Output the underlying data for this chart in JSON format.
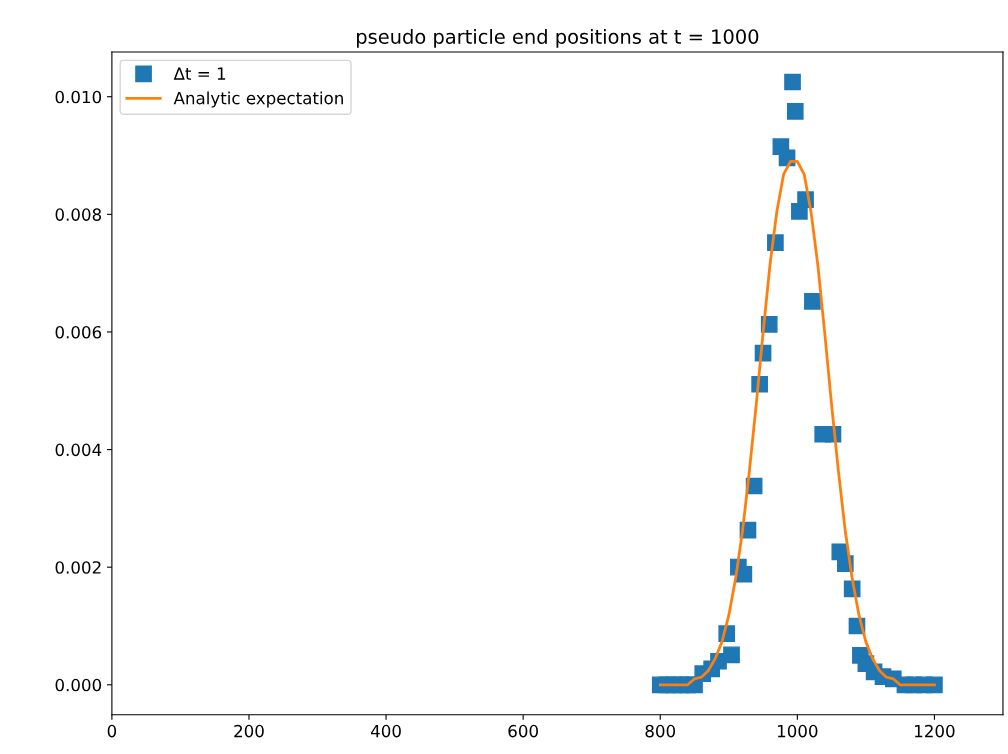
{
  "chart_data": {
    "type": "scatter",
    "title": "pseudo particle end positions at t = 1000",
    "series": [
      {
        "name": "Δt = 1",
        "color": "#1f77b4",
        "marker": "square",
        "x": [
          800,
          810,
          820,
          830,
          840,
          850,
          862,
          875,
          885,
          897,
          904,
          914,
          922,
          928,
          937,
          945,
          950,
          959,
          968,
          976,
          985,
          993,
          997,
          1003,
          1012,
          1022,
          1037,
          1052,
          1062,
          1070,
          1080,
          1087,
          1092,
          1100,
          1112,
          1125,
          1140,
          1157,
          1170,
          1185,
          1200
        ],
        "values": [
          0,
          0,
          0,
          0,
          0,
          0,
          0.00019,
          0.00027,
          0.0004,
          0.00087,
          0.00051,
          0.002,
          0.00188,
          0.00263,
          0.00338,
          0.00511,
          0.00564,
          0.00613,
          0.00752,
          0.00915,
          0.00896,
          0.01025,
          0.00975,
          0.00805,
          0.00825,
          0.00652,
          0.00426,
          0.00426,
          0.00226,
          0.00206,
          0.00163,
          0.001,
          0.0005,
          0.00036,
          0.00022,
          0.00014,
          0.0001,
          0,
          0,
          0,
          0
        ]
      },
      {
        "name": "Analytic expectation",
        "type": "line",
        "color": "#ff7f0e",
        "marker": "none",
        "line_style": "solid",
        "x": [
          800,
          810,
          820,
          830,
          840,
          850,
          860,
          870,
          880,
          890,
          900,
          910,
          920,
          930,
          940,
          950,
          960,
          970,
          980,
          990,
          1000,
          1010,
          1020,
          1030,
          1040,
          1050,
          1060,
          1070,
          1080,
          1090,
          1100,
          1110,
          1120,
          1130,
          1140,
          1150,
          1160,
          1170,
          1180,
          1190,
          1200
        ],
        "values": [
          0,
          0,
          0,
          0,
          0,
          0.0001,
          0.00013,
          0.00024,
          0.00044,
          0.00073,
          0.00118,
          0.00181,
          0.00261,
          0.00363,
          0.00476,
          0.00598,
          0.00713,
          0.00804,
          0.00868,
          0.0089,
          0.0089,
          0.00868,
          0.00804,
          0.00713,
          0.00598,
          0.00476,
          0.00363,
          0.00261,
          0.00181,
          0.00118,
          0.00073,
          0.00044,
          0.00024,
          0.00013,
          0.0001,
          0,
          0,
          0,
          0,
          0,
          0
        ]
      }
    ],
    "xlim": [
      0,
      1300
    ],
    "xticks": [
      0,
      200,
      400,
      600,
      800,
      1000,
      1200
    ],
    "ylim": [
      -0.00051,
      0.01076
    ],
    "yticks": [
      {
        "value": 0,
        "label": "0.000"
      },
      {
        "value": 0.002,
        "label": "0.002"
      },
      {
        "value": 0.004,
        "label": "0.004"
      },
      {
        "value": 0.006,
        "label": "0.006"
      },
      {
        "value": 0.008,
        "label": "0.008"
      },
      {
        "value": 0.01,
        "label": "0.010"
      }
    ],
    "grid": false,
    "legend": "top left"
  }
}
